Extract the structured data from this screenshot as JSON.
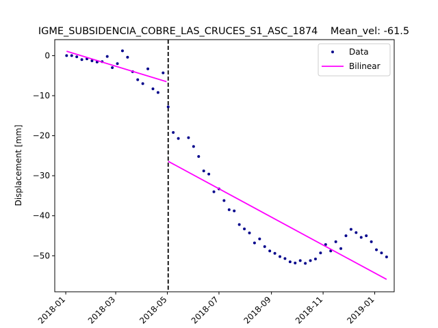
{
  "chart_data": {
    "type": "scatter",
    "title": "IGME_SUBSIDENCIA_COBRE_LAS_CRUCES_S1_ASC_1874    Mean_vel: -61.5",
    "xlabel": "",
    "ylabel": "Displacement [mm]",
    "xlim": [
      "2017-12-19",
      "2019-01-24"
    ],
    "ylim": [
      -59,
      4
    ],
    "x_ticks": [
      "2018-01",
      "2018-03",
      "2018-05",
      "2018-07",
      "2018-09",
      "2018-11",
      "2019-01"
    ],
    "x_tick_dates": [
      "2018-01-01",
      "2018-03-01",
      "2018-05-01",
      "2018-07-01",
      "2018-09-01",
      "2018-11-01",
      "2019-01-01"
    ],
    "y_ticks": [
      0,
      -10,
      -20,
      -30,
      -40,
      -50
    ],
    "grid": false,
    "legend_position": "top-right",
    "colors": {
      "data": "#00008b",
      "bilinear": "#ff00ff",
      "breakpoint": "#000000"
    },
    "breakpoint_date": "2018-05-02",
    "series": [
      {
        "name": "Data",
        "style": "points",
        "points": [
          [
            "2018-01-02",
            0.0
          ],
          [
            "2018-01-08",
            0.0
          ],
          [
            "2018-01-14",
            -0.3
          ],
          [
            "2018-01-20",
            -1.0
          ],
          [
            "2018-01-26",
            -0.8
          ],
          [
            "2018-02-01",
            -1.3
          ],
          [
            "2018-02-07",
            -1.6
          ],
          [
            "2018-02-13",
            -1.5
          ],
          [
            "2018-02-19",
            -0.2
          ],
          [
            "2018-02-25",
            -3.0
          ],
          [
            "2018-03-03",
            -2.0
          ],
          [
            "2018-03-09",
            1.2
          ],
          [
            "2018-03-15",
            -0.4
          ],
          [
            "2018-03-21",
            -4.0
          ],
          [
            "2018-03-27",
            -6.0
          ],
          [
            "2018-04-02",
            -7.0
          ],
          [
            "2018-04-08",
            -3.3
          ],
          [
            "2018-04-14",
            -8.3
          ],
          [
            "2018-04-20",
            -9.2
          ],
          [
            "2018-04-26",
            -4.3
          ],
          [
            "2018-05-02",
            -12.8
          ],
          [
            "2018-05-08",
            -19.2
          ],
          [
            "2018-05-14",
            -20.7
          ],
          [
            "2018-05-26",
            -20.5
          ],
          [
            "2018-06-01",
            -22.7
          ],
          [
            "2018-06-07",
            -25.2
          ],
          [
            "2018-06-13",
            -28.8
          ],
          [
            "2018-06-19",
            -29.6
          ],
          [
            "2018-06-25",
            -34.0
          ],
          [
            "2018-07-01",
            -33.3
          ],
          [
            "2018-07-07",
            -36.2
          ],
          [
            "2018-07-13",
            -38.5
          ],
          [
            "2018-07-19",
            -38.8
          ],
          [
            "2018-07-25",
            -42.2
          ],
          [
            "2018-07-31",
            -43.3
          ],
          [
            "2018-08-06",
            -44.3
          ],
          [
            "2018-08-12",
            -46.8
          ],
          [
            "2018-08-18",
            -45.8
          ],
          [
            "2018-08-24",
            -47.7
          ],
          [
            "2018-08-30",
            -48.8
          ],
          [
            "2018-09-05",
            -49.4
          ],
          [
            "2018-09-11",
            -50.2
          ],
          [
            "2018-09-17",
            -50.7
          ],
          [
            "2018-09-23",
            -51.5
          ],
          [
            "2018-09-29",
            -51.8
          ],
          [
            "2018-10-05",
            -51.2
          ],
          [
            "2018-10-11",
            -51.9
          ],
          [
            "2018-10-17",
            -51.2
          ],
          [
            "2018-10-23",
            -50.8
          ],
          [
            "2018-10-29",
            -49.3
          ],
          [
            "2018-11-04",
            -47.2
          ],
          [
            "2018-11-10",
            -48.8
          ],
          [
            "2018-11-16",
            -46.5
          ],
          [
            "2018-11-22",
            -48.2
          ],
          [
            "2018-11-28",
            -45.0
          ],
          [
            "2018-12-04",
            -43.4
          ],
          [
            "2018-12-10",
            -44.2
          ],
          [
            "2018-12-16",
            -45.4
          ],
          [
            "2018-12-22",
            -45.0
          ],
          [
            "2018-12-28",
            -46.5
          ],
          [
            "2019-01-03",
            -48.5
          ],
          [
            "2019-01-09",
            -49.3
          ],
          [
            "2019-01-15",
            -50.3
          ]
        ]
      },
      {
        "name": "Bilinear",
        "style": "segments",
        "segments": [
          [
            [
              "2018-01-02",
              1.1
            ],
            [
              "2018-04-30",
              -6.5
            ]
          ],
          [
            [
              "2018-05-02",
              -26.4
            ],
            [
              "2019-01-15",
              -55.9
            ]
          ]
        ]
      }
    ]
  }
}
